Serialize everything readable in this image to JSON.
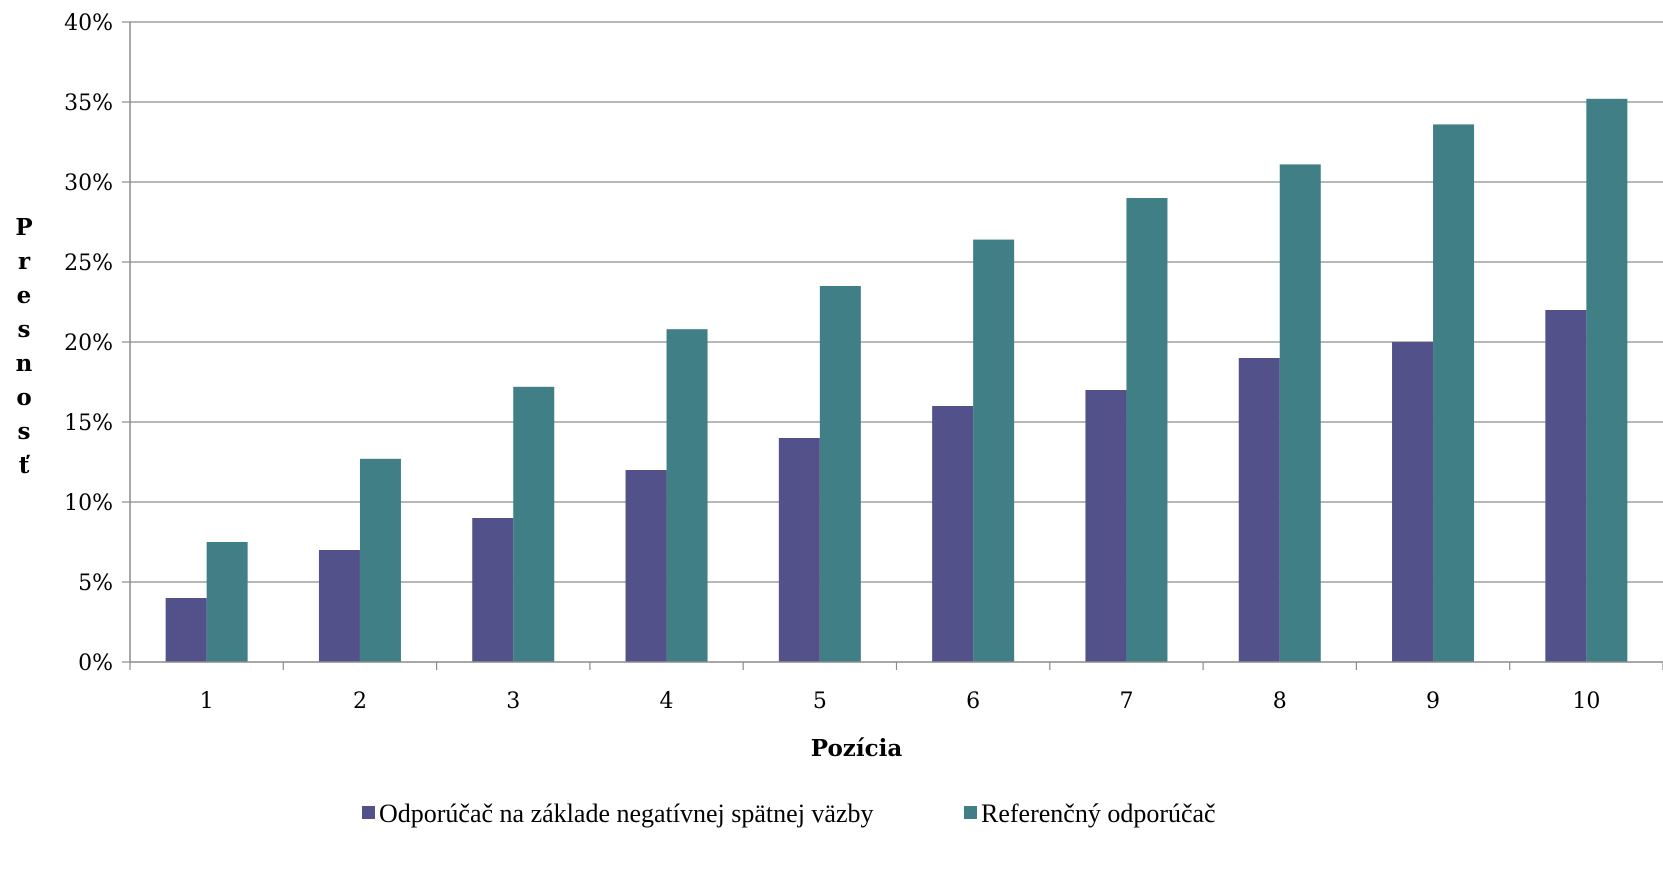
{
  "chart_data": {
    "type": "bar",
    "title": "",
    "xlabel": "Pozícia",
    "ylabel": "Presnosť",
    "categories": [
      "1",
      "2",
      "3",
      "4",
      "5",
      "6",
      "7",
      "8",
      "9",
      "10"
    ],
    "series": [
      {
        "name": "Odporúčač na základe negatívnej spätnej väzby",
        "color": "#53518A",
        "values": [
          4,
          7,
          9,
          12,
          14,
          16,
          17,
          19,
          20,
          22
        ]
      },
      {
        "name": "Referenčný odporúčač",
        "color": "#417F86",
        "values": [
          7.5,
          12.7,
          17.2,
          20.8,
          23.5,
          26.4,
          29.0,
          31.1,
          33.6,
          35.2
        ]
      }
    ],
    "ylim": [
      0,
      40
    ],
    "y_ticks": [
      0,
      5,
      10,
      15,
      20,
      25,
      30,
      35,
      40
    ],
    "y_tick_format": "percent",
    "grid": true,
    "legend_position": "bottom"
  }
}
